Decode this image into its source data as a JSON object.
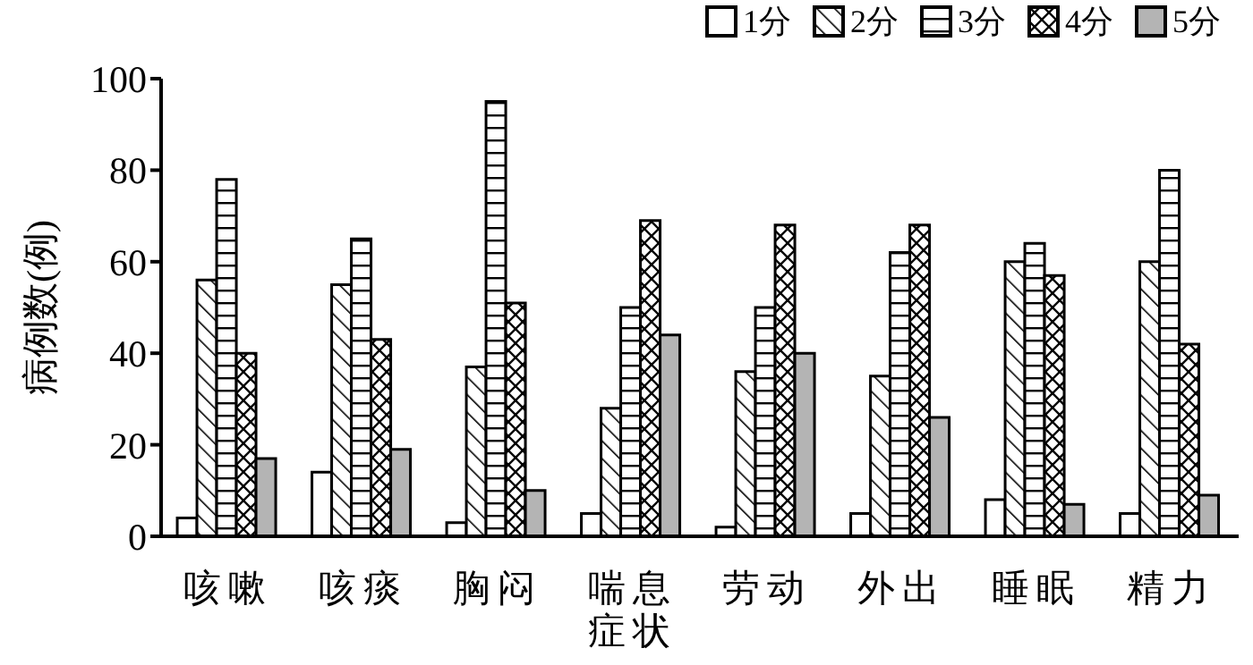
{
  "chart_data": {
    "type": "bar",
    "ylabel": "病例数(例)",
    "categories": [
      "咳嗽",
      "咳痰",
      "胸闷",
      "喘息症状",
      "劳动",
      "外出",
      "睡眠",
      "精力"
    ],
    "series": [
      {
        "name": "1分",
        "color": "#ffffff",
        "values": [
          4,
          14,
          3,
          5,
          2,
          5,
          8,
          5
        ]
      },
      {
        "name": "2分",
        "color": "#000000",
        "values": [
          56,
          55,
          37,
          28,
          36,
          35,
          60,
          60
        ]
      },
      {
        "name": "3分",
        "color": "#000000",
        "values": [
          78,
          65,
          95,
          50,
          50,
          62,
          64,
          80
        ]
      },
      {
        "name": "4分",
        "color": "#000000",
        "values": [
          40,
          43,
          51,
          69,
          68,
          68,
          57,
          42
        ]
      },
      {
        "name": "5分",
        "color": "#b4b4b4",
        "values": [
          17,
          19,
          10,
          44,
          40,
          26,
          7,
          9
        ]
      }
    ],
    "ylim": [
      0,
      100
    ],
    "yticks": [
      0,
      20,
      40,
      60,
      80,
      100
    ],
    "grid": false,
    "legend": "top right"
  }
}
